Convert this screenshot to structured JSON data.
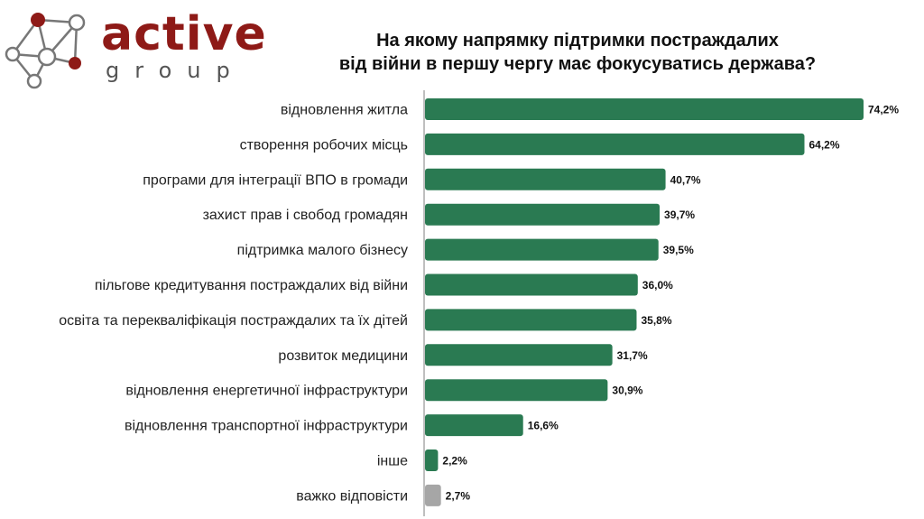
{
  "logo": {
    "word": "active",
    "sub": "group"
  },
  "colors": {
    "brand": "#8e1a17",
    "bar": "#2a7a52",
    "bar_other": "#a6a6a6",
    "axis": "#7f7f7f"
  },
  "chart_data": {
    "type": "bar",
    "orientation": "horizontal",
    "title": [
      "На якому напрямку підтримки постраждалих",
      "від війни в першу чергу має фокусуватись держава?"
    ],
    "categories": [
      "відновлення житла",
      "створення робочих місць",
      "програми для інтеграції ВПО в громади",
      "захист прав і свобод громадян",
      "підтримка малого бізнесу",
      "пільгове кредитування постраждалих від війни",
      "освіта та перекваліфікація постраждалих та їх дітей",
      "розвиток медицини",
      "відновлення енергетичної інфраструктури",
      "відновлення транспортної інфраструктури",
      "інше",
      "важко відповісти"
    ],
    "values": [
      74.2,
      64.2,
      40.7,
      39.7,
      39.5,
      36.0,
      35.8,
      31.7,
      30.9,
      16.6,
      2.2,
      2.7
    ],
    "value_labels": [
      "74,2%",
      "64,2%",
      "40,7%",
      "39,7%",
      "39,5%",
      "36,0%",
      "35,8%",
      "31,7%",
      "30,9%",
      "16,6%",
      "2,2%",
      "2,7%"
    ],
    "bar_colors": [
      "#2a7a52",
      "#2a7a52",
      "#2a7a52",
      "#2a7a52",
      "#2a7a52",
      "#2a7a52",
      "#2a7a52",
      "#2a7a52",
      "#2a7a52",
      "#2a7a52",
      "#2a7a52",
      "#a6a6a6"
    ],
    "xlim": [
      0,
      80
    ],
    "grid": false,
    "legend": "none"
  }
}
